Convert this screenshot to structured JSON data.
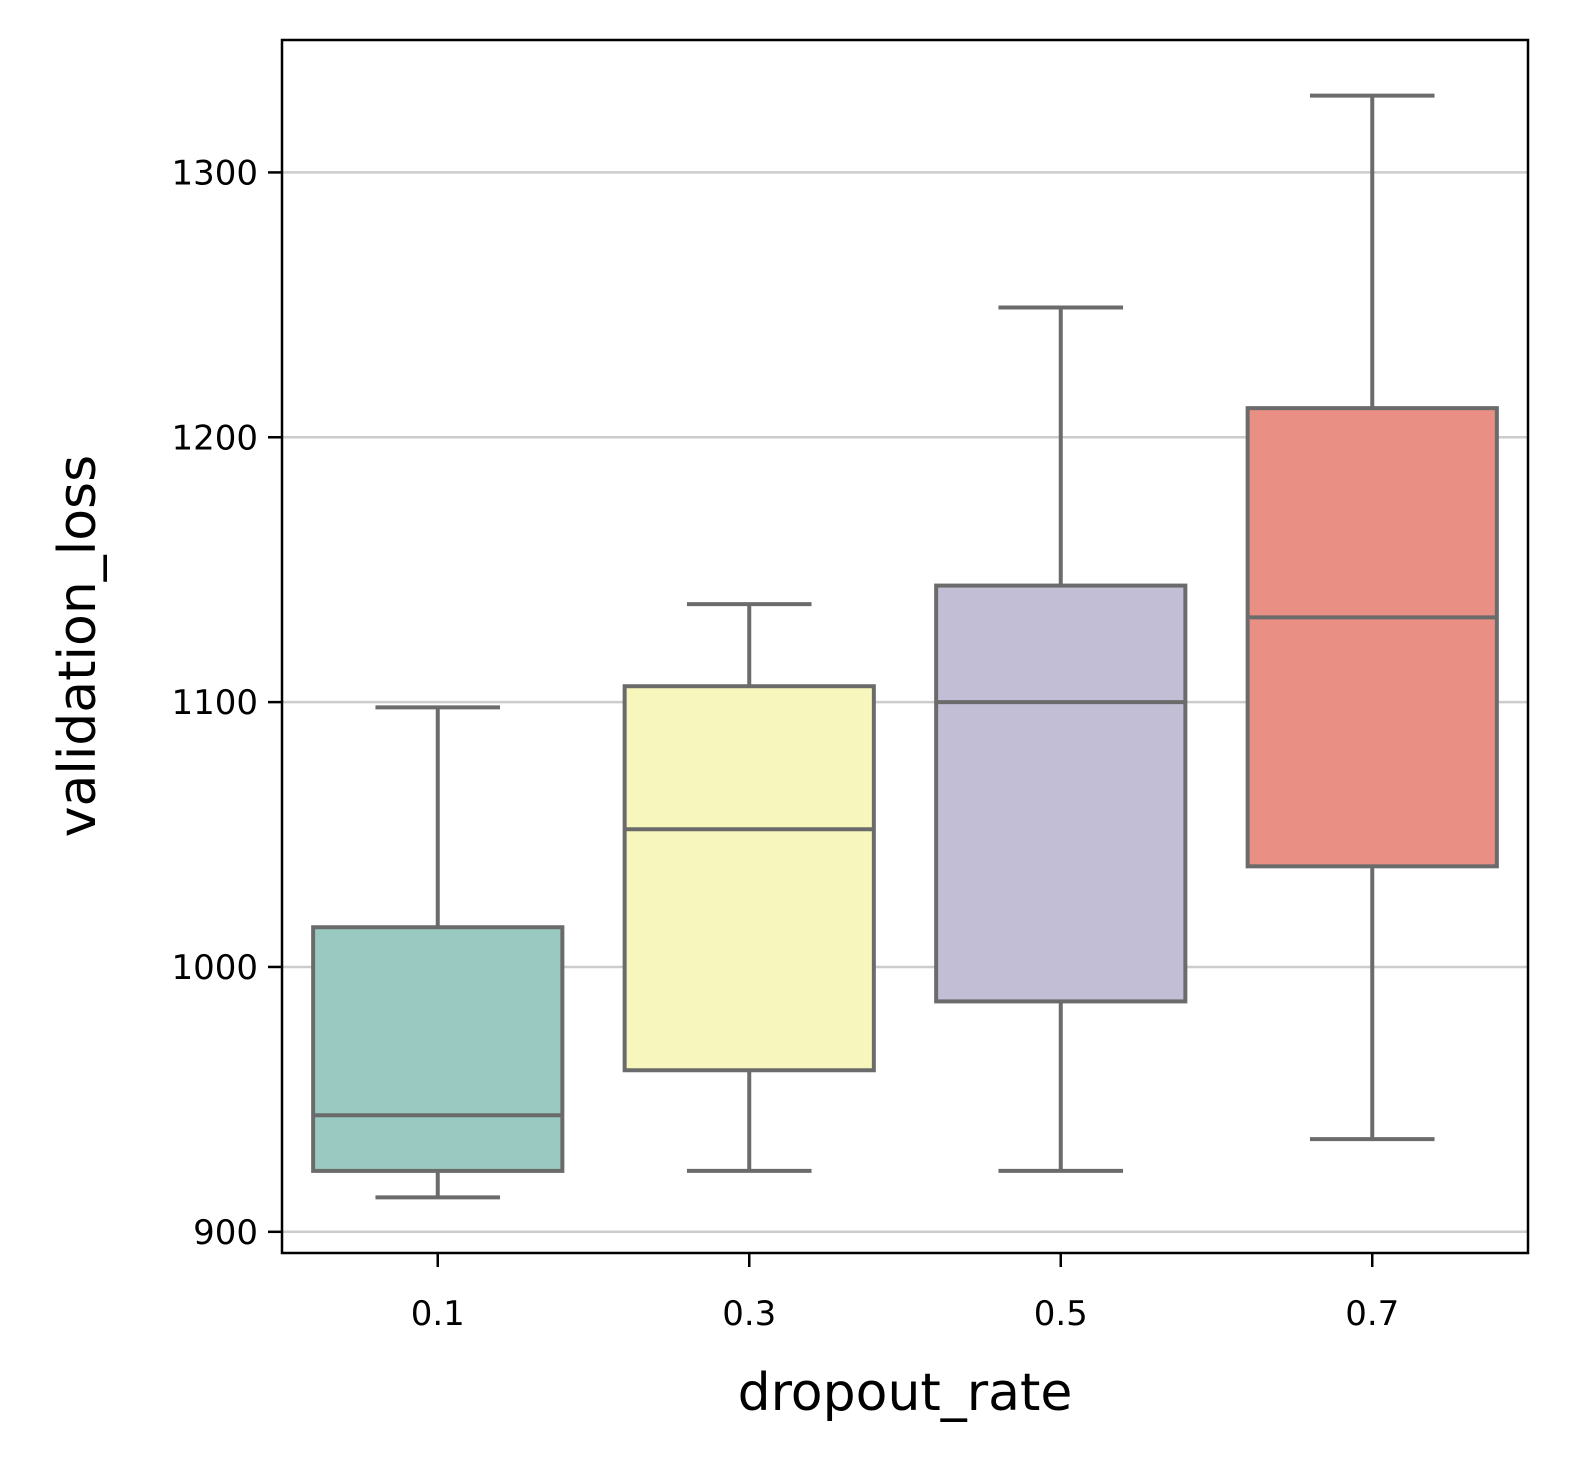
{
  "chart_data": {
    "type": "box",
    "xlabel": "dropout_rate",
    "ylabel": "validation_loss",
    "ylim": [
      892,
      1350
    ],
    "yticks": [
      900,
      1000,
      1100,
      1200,
      1300
    ],
    "grid": "horizontal",
    "categories": [
      "0.1",
      "0.3",
      "0.5",
      "0.7"
    ],
    "boxes": [
      {
        "category": "0.1",
        "whisker_low": 913,
        "q1": 923,
        "median": 944,
        "q3": 1015,
        "whisker_high": 1098,
        "color": "#99c9c1"
      },
      {
        "category": "0.3",
        "whisker_low": 923,
        "q1": 961,
        "median": 1052,
        "q3": 1106,
        "whisker_high": 1137,
        "color": "#f7f6bc"
      },
      {
        "category": "0.5",
        "whisker_low": 923,
        "q1": 987,
        "median": 1100,
        "q3": 1144,
        "whisker_high": 1249,
        "color": "#c2bed5"
      },
      {
        "category": "0.7",
        "whisker_low": 935,
        "q1": 1038,
        "median": 1132,
        "q3": 1211,
        "whisker_high": 1329,
        "color": "#ea8f83"
      }
    ],
    "line_color": "#6b6b6b",
    "grid_color": "#cccccc"
  }
}
